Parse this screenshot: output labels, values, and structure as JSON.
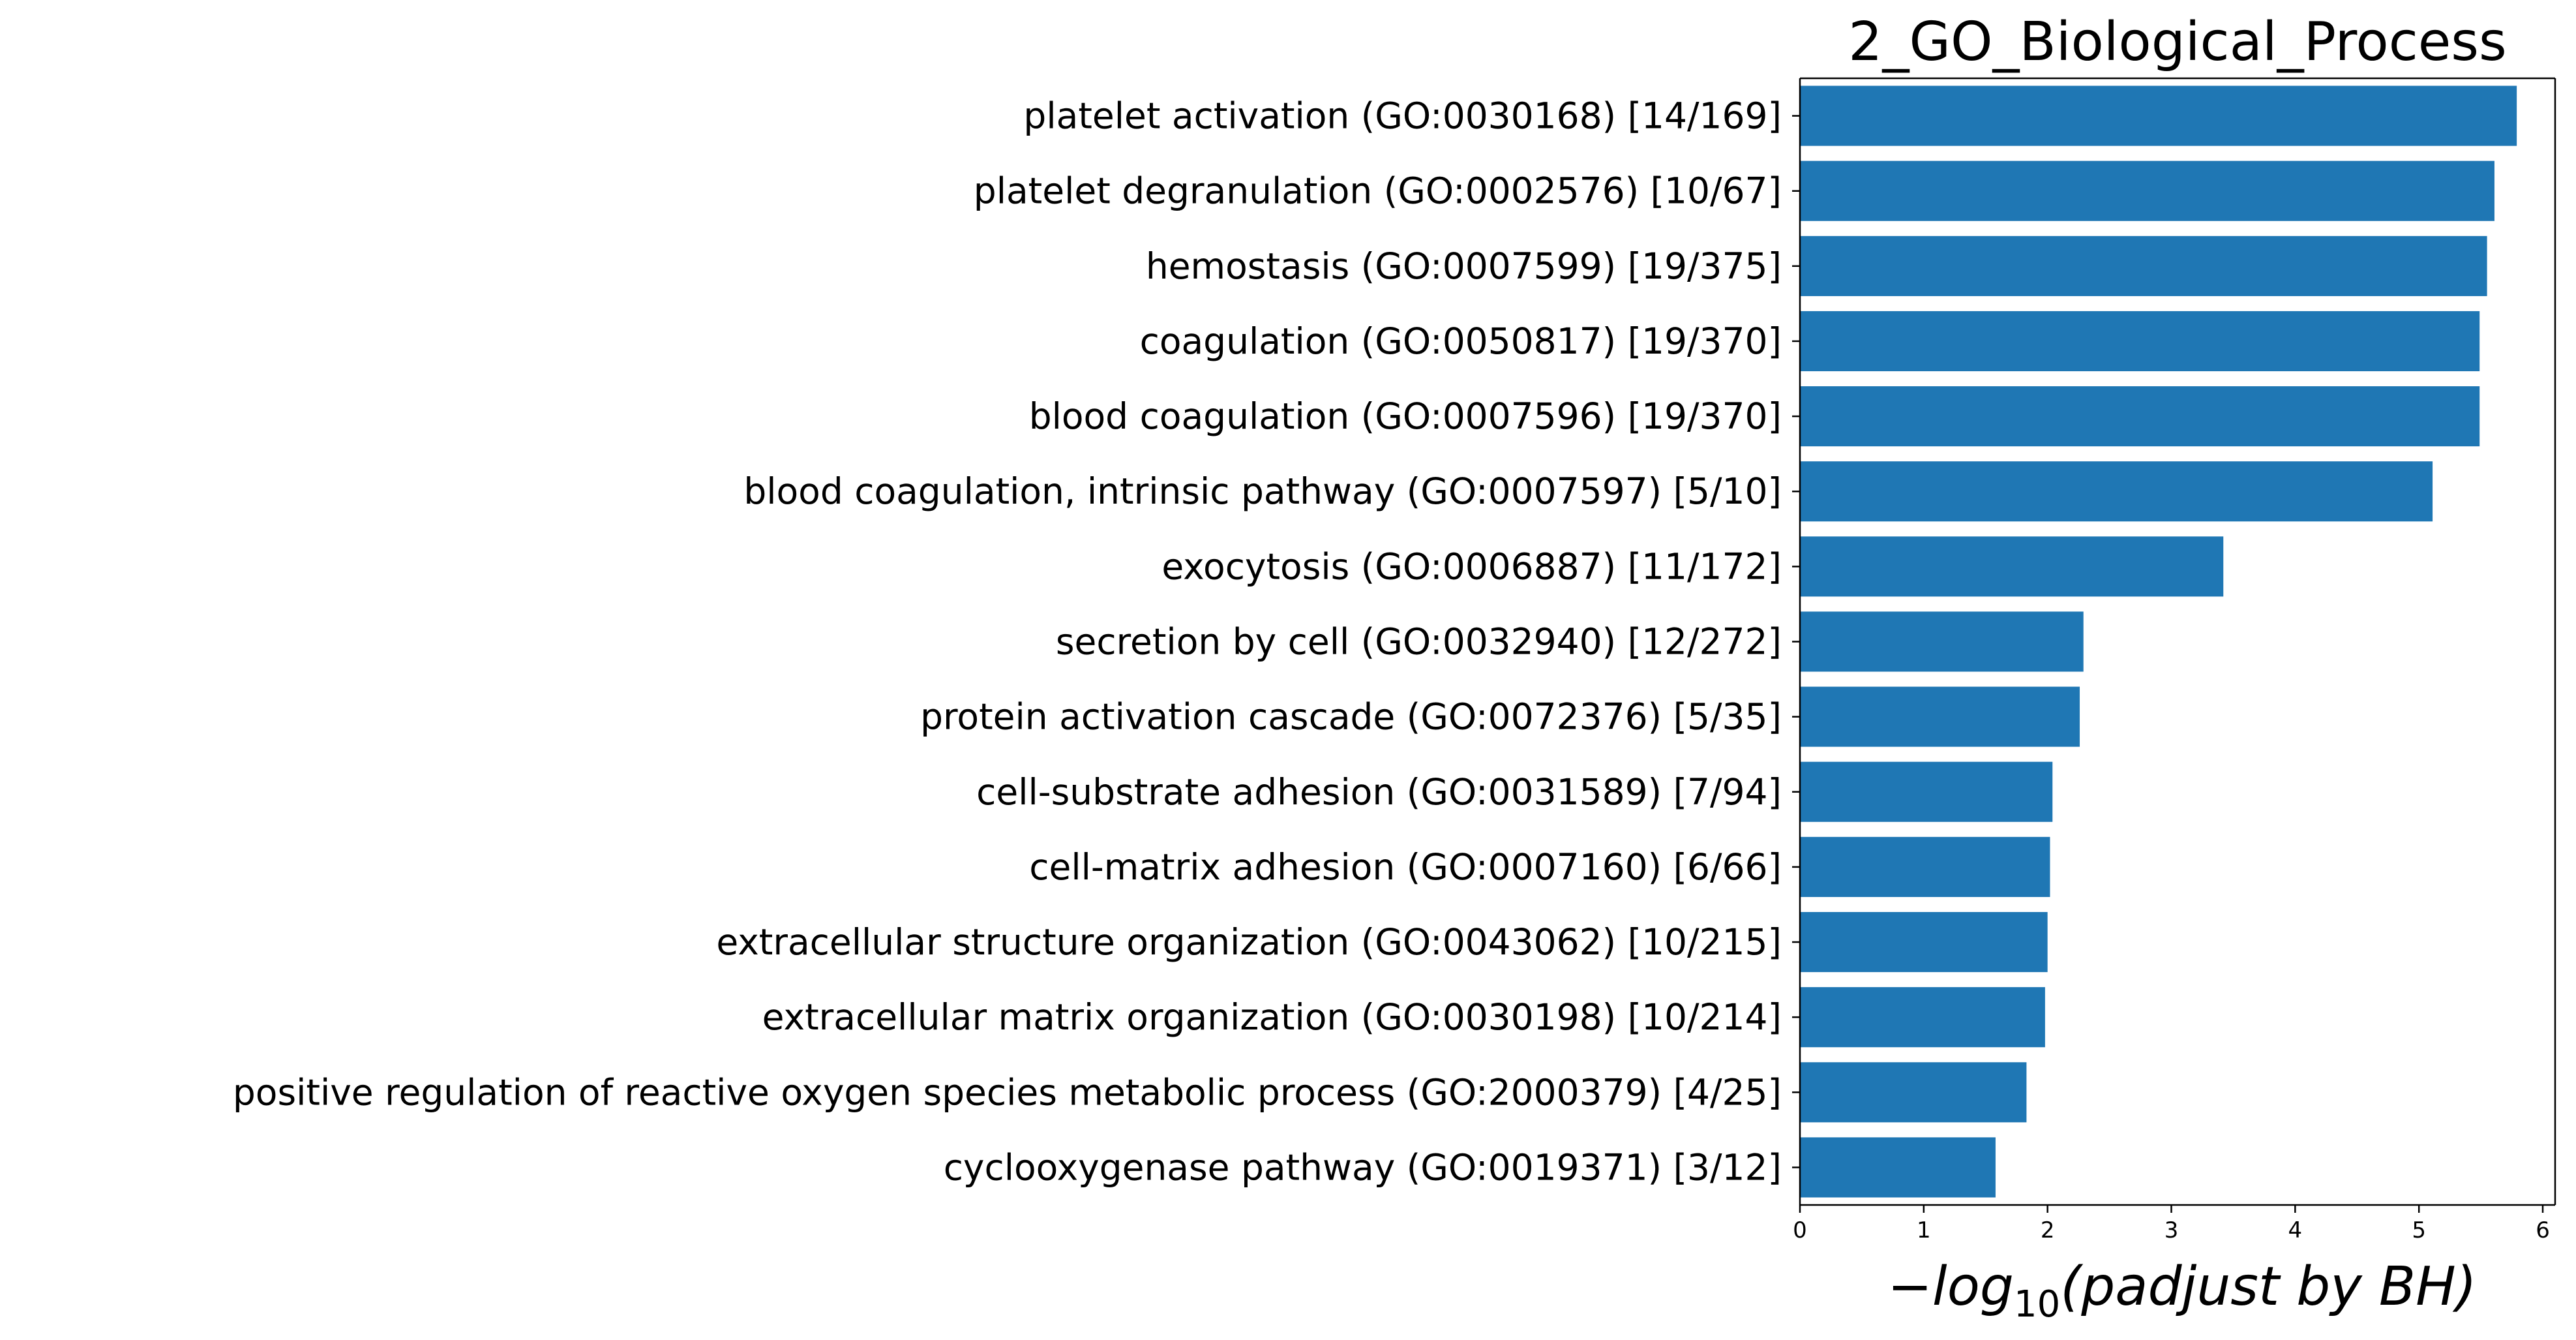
{
  "chart_data": {
    "type": "bar",
    "orientation": "horizontal",
    "title": "2_GO_Biological_Process",
    "xlabel": "−log10(padjust by BH)",
    "xlabel_parts": {
      "prefix": "−",
      "base": "log",
      "sub": "10",
      "body": "(padjust by BH)"
    },
    "ylabel": "",
    "xlim": [
      0,
      6.1
    ],
    "xticks": [
      0,
      1,
      2,
      3,
      4,
      5,
      6
    ],
    "grid": false,
    "bar_color": "#1f77b4",
    "categories": [
      "platelet activation (GO:0030168) [14/169]",
      "platelet degranulation (GO:0002576) [10/67]",
      "hemostasis (GO:0007599) [19/375]",
      "coagulation (GO:0050817) [19/370]",
      "blood coagulation (GO:0007596) [19/370]",
      "blood coagulation, intrinsic pathway (GO:0007597) [5/10]",
      "exocytosis (GO:0006887) [11/172]",
      "secretion by cell (GO:0032940) [12/272]",
      "protein activation cascade (GO:0072376) [5/35]",
      "cell-substrate adhesion (GO:0031589) [7/94]",
      "cell-matrix adhesion (GO:0007160) [6/66]",
      "extracellular structure organization (GO:0043062) [10/215]",
      "extracellular matrix organization (GO:0030198) [10/214]",
      "positive regulation of reactive oxygen species metabolic process (GO:2000379) [4/25]",
      "cyclooxygenase pathway (GO:0019371) [3/12]"
    ],
    "values": [
      5.79,
      5.61,
      5.55,
      5.49,
      5.49,
      5.11,
      3.42,
      2.29,
      2.26,
      2.04,
      2.02,
      2.0,
      1.98,
      1.83,
      1.58
    ]
  }
}
